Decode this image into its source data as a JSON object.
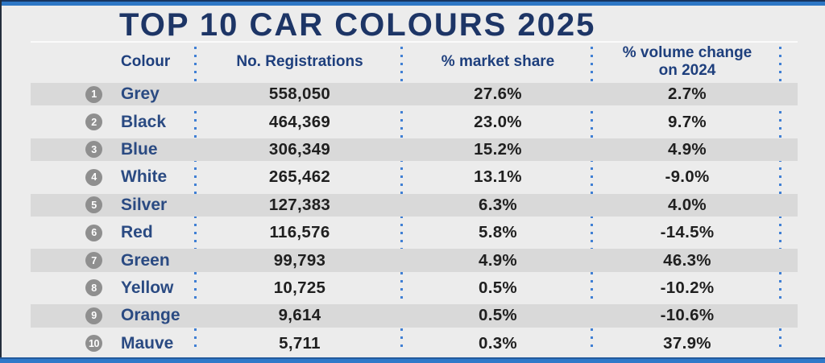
{
  "title": "TOP 10 CAR COLOURS 2025",
  "columns": {
    "colour": "Colour",
    "registrations": "No. Registrations",
    "market_share": "% market share",
    "volume_change": "% volume change on 2024"
  },
  "rows": [
    {
      "rank": "1",
      "colour": "Grey",
      "registrations": "558,050",
      "market_share": "27.6%",
      "volume_change": "2.7%"
    },
    {
      "rank": "2",
      "colour": "Black",
      "registrations": "464,369",
      "market_share": "23.0%",
      "volume_change": "9.7%"
    },
    {
      "rank": "3",
      "colour": "Blue",
      "registrations": "306,349",
      "market_share": "15.2%",
      "volume_change": "4.9%"
    },
    {
      "rank": "4",
      "colour": "White",
      "registrations": "265,462",
      "market_share": "13.1%",
      "volume_change": "-9.0%"
    },
    {
      "rank": "5",
      "colour": "Silver",
      "registrations": "127,383",
      "market_share": "6.3%",
      "volume_change": "4.0%"
    },
    {
      "rank": "6",
      "colour": "Red",
      "registrations": "116,576",
      "market_share": "5.8%",
      "volume_change": "-14.5%"
    },
    {
      "rank": "7",
      "colour": "Green",
      "registrations": "99,793",
      "market_share": "4.9%",
      "volume_change": "46.3%"
    },
    {
      "rank": "8",
      "colour": "Yellow",
      "registrations": "10,725",
      "market_share": "0.5%",
      "volume_change": "-10.2%"
    },
    {
      "rank": "9",
      "colour": "Orange",
      "registrations": "9,614",
      "market_share": "0.5%",
      "volume_change": "-10.6%"
    },
    {
      "rank": "10",
      "colour": "Mauve",
      "registrations": "5,711",
      "market_share": "0.3%",
      "volume_change": "37.9%"
    }
  ],
  "colors": {
    "background": "#ececec",
    "band_grey": "#d9d9d9",
    "title_navy": "#1d3566",
    "header_navy": "#1e3f7d",
    "badge_grey": "#8f8f8f",
    "dot_blue": "#3f7fd4",
    "border_blue": "#2e77c5"
  },
  "chart_data": {
    "type": "table",
    "title": "TOP 10 CAR COLOURS 2025",
    "columns": [
      "Colour",
      "No. Registrations",
      "% market share",
      "% volume change on 2024"
    ],
    "rows": [
      [
        "Grey",
        558050,
        27.6,
        2.7
      ],
      [
        "Black",
        464369,
        23.0,
        9.7
      ],
      [
        "Blue",
        306349,
        15.2,
        4.9
      ],
      [
        "White",
        265462,
        13.1,
        -9.0
      ],
      [
        "Silver",
        127383,
        6.3,
        4.0
      ],
      [
        "Red",
        116576,
        5.8,
        -14.5
      ],
      [
        "Green",
        99793,
        4.9,
        46.3
      ],
      [
        "Yellow",
        10725,
        0.5,
        -10.2
      ],
      [
        "Orange",
        9614,
        0.5,
        -10.6
      ],
      [
        "Mauve",
        5711,
        0.3,
        37.9
      ]
    ]
  }
}
